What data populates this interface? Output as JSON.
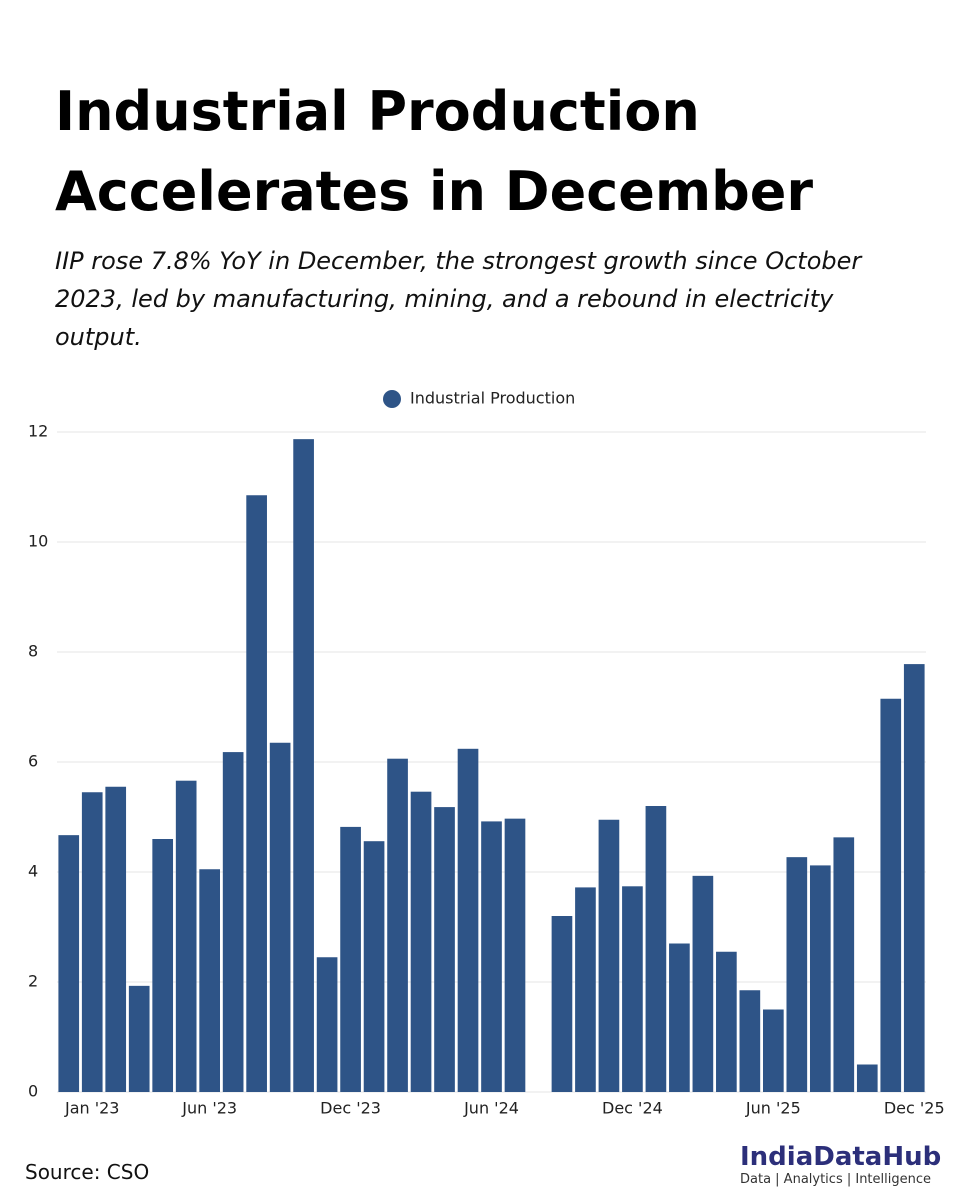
{
  "header": {
    "title": "Industrial Production Accelerates in December",
    "subtitle": "IIP rose 7.8% YoY in December, the strongest growth since October 2023, led by manufacturing, mining, and a rebound in electricity output."
  },
  "chart_data": {
    "type": "bar",
    "categories": [
      null,
      "Jan '23",
      null,
      null,
      null,
      null,
      "Jun '23",
      null,
      null,
      null,
      null,
      null,
      "Dec '23",
      null,
      null,
      null,
      null,
      null,
      "Jun '24",
      null,
      null,
      null,
      null,
      null,
      "Dec '24",
      null,
      null,
      null,
      null,
      null,
      "Jun '25",
      null,
      null,
      null,
      null,
      null,
      "Dec '25"
    ],
    "series": [
      {
        "name": "Industrial Production",
        "color": "#2e5487",
        "values": [
          4.67,
          5.45,
          5.55,
          1.93,
          4.6,
          5.66,
          4.05,
          6.18,
          10.85,
          6.35,
          11.87,
          2.45,
          4.82,
          4.56,
          6.06,
          5.46,
          5.18,
          6.24,
          4.92,
          4.97,
          0,
          3.2,
          3.72,
          4.95,
          3.74,
          5.2,
          2.7,
          3.93,
          2.55,
          1.85,
          1.5,
          4.27,
          4.12,
          4.63,
          0.5,
          7.15,
          7.78
        ]
      }
    ],
    "ylim": [
      0,
      12
    ],
    "yticks": [
      0,
      2,
      4,
      6,
      8,
      10,
      12
    ],
    "grid": true,
    "legend": "top"
  },
  "footer": {
    "source": "Source: CSO",
    "brand": "IndiaDataHub",
    "tagline": "Data | Analytics | Intelligence"
  }
}
